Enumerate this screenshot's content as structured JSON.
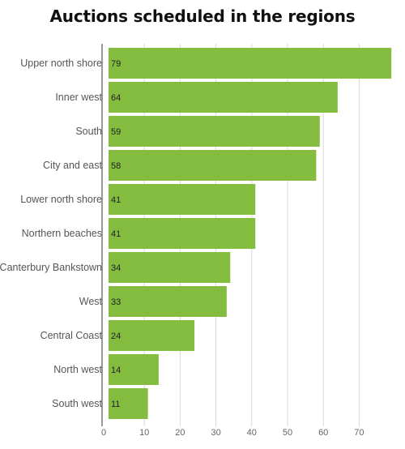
{
  "chart_data": {
    "type": "bar",
    "orientation": "horizontal",
    "title": "Auctions scheduled in the regions",
    "categories": [
      "Upper north shore",
      "Inner west",
      "South",
      "City and east",
      "Lower north shore",
      "Northern beaches",
      "Canterbury Bankstown",
      "West",
      "Central Coast",
      "North west",
      "South west"
    ],
    "values": [
      79,
      64,
      59,
      58,
      41,
      41,
      34,
      33,
      24,
      14,
      11
    ],
    "xlim": [
      0,
      79
    ],
    "xticks": [
      0,
      10,
      20,
      30,
      40,
      50,
      60,
      70
    ],
    "xlabel": "",
    "ylabel": "",
    "grid": true,
    "bar_color": "#84bc40",
    "grid_color": "#d9d9d9",
    "axis_color": "#999999"
  }
}
